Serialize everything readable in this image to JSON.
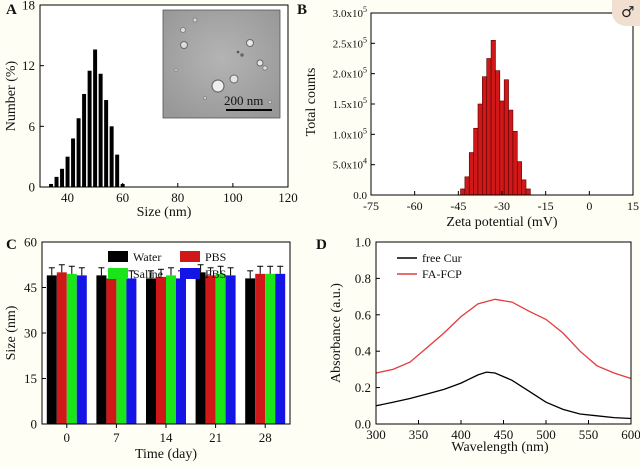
{
  "panel_labels": {
    "a": "A",
    "b": "B",
    "c": "C",
    "d": "D"
  },
  "colors": {
    "bar_red": "#d01818",
    "green": "#19e519",
    "blue": "#1414e6",
    "line_red": "#e33b3b",
    "panel_bg": "#ffffff",
    "page_bg": "#fffef4"
  },
  "corner_icon": "male-symbol-icon",
  "corner_glyph": "♂",
  "chart_data": [
    {
      "panel": "A",
      "type": "bar",
      "xlabel": "Size (nm)",
      "ylabel": "Number (%)",
      "xlim": [
        30,
        120
      ],
      "ylim": [
        0,
        18
      ],
      "xticks": [
        40,
        60,
        80,
        100,
        120
      ],
      "yticks": [
        0,
        6,
        12,
        18
      ],
      "x": [
        34,
        36,
        38,
        40,
        42,
        44,
        46,
        48,
        50,
        52,
        54,
        56,
        58,
        60
      ],
      "values": [
        0.3,
        1.0,
        1.8,
        3.0,
        4.8,
        6.8,
        9.2,
        11.5,
        13.6,
        11.2,
        8.6,
        6.0,
        3.2,
        0.3
      ],
      "inset_image": {
        "scale_bar_label": "200 nm"
      }
    },
    {
      "panel": "B",
      "type": "bar",
      "xlabel": "Zeta potential (mV)",
      "ylabel": "Total counts",
      "xlim": [
        -75,
        15
      ],
      "ylim": [
        0,
        300000
      ],
      "xticks": [
        "-75",
        "-60",
        "-45",
        "-30",
        "-15",
        "0",
        "15"
      ],
      "yticks": [
        {
          "mant": "0.0",
          "exp": ""
        },
        {
          "mant": "5.0x10",
          "exp": "4"
        },
        {
          "mant": "1.0x10",
          "exp": "5"
        },
        {
          "mant": "1.5x10",
          "exp": "5"
        },
        {
          "mant": "2.0x10",
          "exp": "5"
        },
        {
          "mant": "2.5x10",
          "exp": "5"
        },
        {
          "mant": "3.0x10",
          "exp": "5"
        }
      ],
      "x": [
        -43.5,
        -42,
        -40.5,
        -39,
        -37.5,
        -36,
        -34.5,
        -33,
        -31.5,
        -30,
        -28.5,
        -27,
        -25.5,
        -24,
        -22.5,
        -21
      ],
      "values": [
        10000,
        30000,
        70000,
        110000,
        150000,
        195000,
        225000,
        255000,
        205000,
        155000,
        190000,
        140000,
        105000,
        55000,
        25000,
        10000
      ]
    },
    {
      "panel": "C",
      "type": "bar",
      "xlabel": "Time (day)",
      "ylabel": "Size (nm)",
      "ylim": [
        0,
        60
      ],
      "yticks": [
        0,
        15,
        30,
        45,
        60
      ],
      "categories": [
        "0",
        "7",
        "14",
        "21",
        "28"
      ],
      "legend_position": "top",
      "series": [
        {
          "name": "Water",
          "color": "#000000",
          "values": [
            49,
            49,
            48,
            50,
            48
          ],
          "errors": [
            2.5,
            2.5,
            2.5,
            2.5,
            2.5
          ]
        },
        {
          "name": "PBS",
          "color": "#d01818",
          "values": [
            50,
            48,
            48.5,
            49,
            49.5
          ],
          "errors": [
            2.5,
            2.5,
            2.5,
            2.5,
            2.5
          ]
        },
        {
          "name": "Saline",
          "color": "#19e519",
          "values": [
            49.5,
            48.5,
            49,
            49.5,
            49.5
          ],
          "errors": [
            2.5,
            2.5,
            2.5,
            2.5,
            2.5
          ]
        },
        {
          "name": "FBS",
          "color": "#1414e6",
          "values": [
            49,
            48,
            48,
            49,
            49.5
          ],
          "errors": [
            2.5,
            2.5,
            2.5,
            2.5,
            2.5
          ]
        }
      ]
    },
    {
      "panel": "D",
      "type": "line",
      "xlabel": "Wavelength (nm)",
      "ylabel": "Absorbance (a.u.)",
      "xlim": [
        300,
        600
      ],
      "ylim": [
        0,
        1.0
      ],
      "xticks": [
        300,
        350,
        400,
        450,
        500,
        550,
        600
      ],
      "yticks": [
        "0.0",
        "0.2",
        "0.4",
        "0.6",
        "0.8",
        "1.0"
      ],
      "legend_position": "top-left",
      "series": [
        {
          "name": "free Cur",
          "color": "#000000",
          "x": [
            300,
            320,
            340,
            360,
            380,
            400,
            420,
            430,
            440,
            460,
            480,
            500,
            520,
            540,
            560,
            580,
            600
          ],
          "values": [
            0.1,
            0.12,
            0.14,
            0.165,
            0.19,
            0.225,
            0.27,
            0.285,
            0.28,
            0.24,
            0.18,
            0.12,
            0.08,
            0.055,
            0.045,
            0.035,
            0.03
          ]
        },
        {
          "name": "FA-FCP",
          "color": "#e33b3b",
          "x": [
            300,
            320,
            340,
            360,
            380,
            400,
            420,
            440,
            460,
            480,
            500,
            520,
            540,
            560,
            580,
            600
          ],
          "values": [
            0.28,
            0.3,
            0.34,
            0.42,
            0.5,
            0.59,
            0.66,
            0.685,
            0.67,
            0.62,
            0.575,
            0.5,
            0.4,
            0.32,
            0.28,
            0.25
          ]
        }
      ]
    }
  ]
}
